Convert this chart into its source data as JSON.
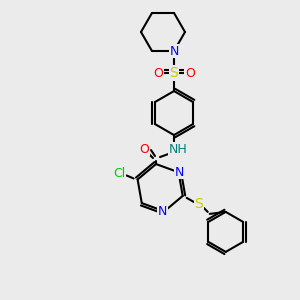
{
  "bg_color": "#ebebeb",
  "bond_color": "#000000",
  "atom_colors": {
    "N": "#0000ff",
    "O": "#ff0000",
    "S_yellow": "#cccc00",
    "Cl": "#00cc00",
    "C": "#000000",
    "NH": "#008080"
  },
  "bond_width": 1.5,
  "font_size": 9
}
